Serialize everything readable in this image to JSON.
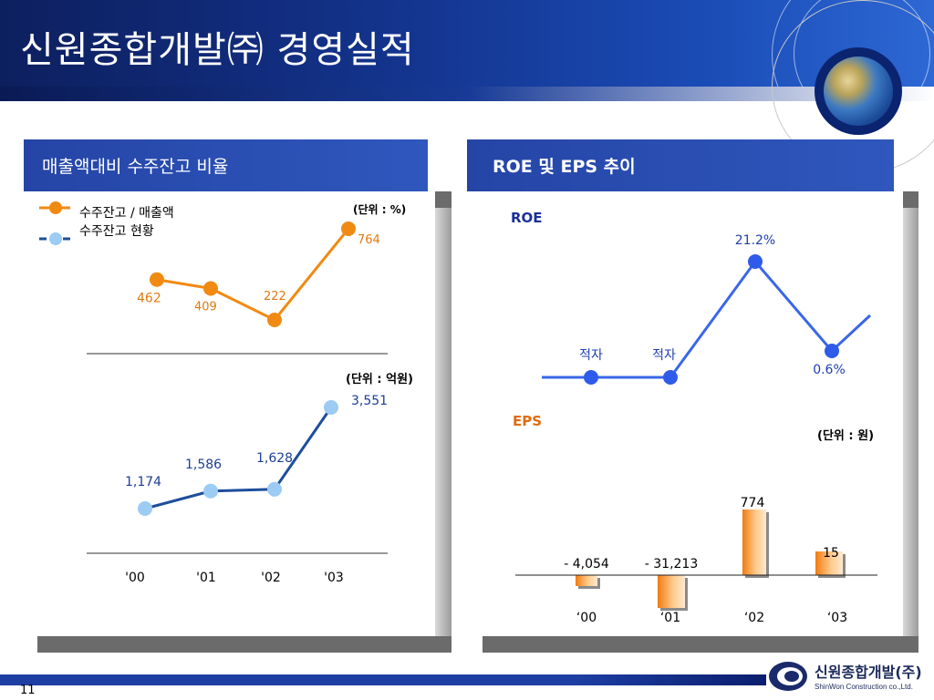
{
  "header": {
    "title": "신원종합개발㈜ 경영실적"
  },
  "left_panel": {
    "title": "매출액대비  수주잔고 비율",
    "legend": [
      {
        "label": "수주잔고 / 매출액",
        "color": "#f08a12"
      },
      {
        "label": "수주잔고 현황",
        "color": "#9ccbf3"
      }
    ],
    "unit_ratio": "(단위 : %)",
    "unit_backlog": "(단위 : 억원)",
    "x_labels": [
      "'00",
      "'01",
      "'02",
      "'03"
    ]
  },
  "right_panel": {
    "title": "ROE 및 EPS 추이",
    "roe_label": "ROE",
    "eps_label": "EPS",
    "unit_eps": "(단위 : 원)",
    "x_labels": [
      "‘00",
      "‘01",
      "‘02",
      "‘03"
    ]
  },
  "chart_data": [
    {
      "type": "line",
      "categories": [
        "'00",
        "'01",
        "'02",
        "'03"
      ],
      "series": [
        {
          "name": "수주잔고 / 매출액",
          "values": [
            462,
            409,
            222,
            764
          ],
          "labels": [
            "462",
            "409",
            "222",
            "764"
          ]
        }
      ],
      "ylabel": "(단위 : %)"
    },
    {
      "type": "line",
      "categories": [
        "'00",
        "'01",
        "'02",
        "'03"
      ],
      "series": [
        {
          "name": "수주잔고 현황",
          "values": [
            1174,
            1586,
            1628,
            3551
          ],
          "labels": [
            "1,174",
            "1,586",
            "1,628",
            "3,551"
          ]
        }
      ],
      "ylabel": "(단위 : 억원)"
    },
    {
      "type": "line",
      "categories": [
        "‘00",
        "‘01",
        "‘02",
        "‘03"
      ],
      "series": [
        {
          "name": "ROE",
          "values": [
            null,
            null,
            21.2,
            0.6
          ],
          "labels": [
            "적자",
            "적자",
            "21.2%",
            "0.6%"
          ]
        }
      ],
      "ylim": [
        -8,
        22
      ]
    },
    {
      "type": "bar",
      "categories": [
        "‘00",
        "‘01",
        "‘02",
        "‘03"
      ],
      "series": [
        {
          "name": "EPS",
          "values": [
            -4054,
            -31213,
            774,
            15
          ],
          "labels": [
            "- 4,054",
            "- 31,213",
            "774",
            "15"
          ]
        }
      ],
      "ylabel": "(단위 : 원)"
    }
  ],
  "footer": {
    "page": "11",
    "company_ko": "신원종합개발(주)",
    "company_en": "ShinWon Construction co.,Ltd."
  },
  "colors": {
    "orange": "#f08a12",
    "light_blue": "#9ccbf3",
    "navy": "#1d4e9c",
    "roe_blue": "#3a66e8",
    "panel_blue": "#2a4fb6"
  }
}
